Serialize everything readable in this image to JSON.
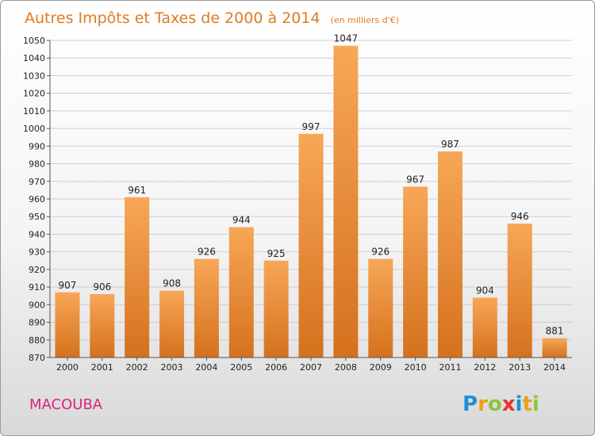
{
  "chart_data": {
    "type": "bar",
    "title": "Autres Impôts et Taxes de 2000 à 2014",
    "subtitle": "(en milliers d'€)",
    "categories": [
      "2000",
      "2001",
      "2002",
      "2003",
      "2004",
      "2005",
      "2006",
      "2007",
      "2008",
      "2009",
      "2010",
      "2011",
      "2012",
      "2013",
      "2014"
    ],
    "values": [
      907,
      906,
      961,
      908,
      926,
      944,
      925,
      997,
      1047,
      926,
      967,
      987,
      904,
      946,
      881
    ],
    "ylim": [
      870,
      1050
    ],
    "yticks": [
      870,
      880,
      890,
      900,
      910,
      920,
      930,
      940,
      950,
      960,
      970,
      980,
      990,
      1000,
      1010,
      1020,
      1030,
      1040,
      1050
    ],
    "grid": true,
    "bar_color_top": "#f7a757",
    "bar_color_bottom": "#d5711d"
  },
  "place_name": "MACOUBA",
  "brand": {
    "letters": [
      "P",
      "r",
      "o",
      "x",
      "i",
      "t",
      "i"
    ],
    "colors": [
      "#1f8fd6",
      "#e8a21a",
      "#8fc43a",
      "#e7332a",
      "#1f8fd6",
      "#e8a21a",
      "#8fc43a"
    ]
  }
}
